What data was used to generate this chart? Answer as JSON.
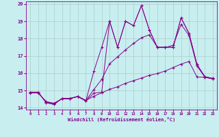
{
  "xlabel": "Windchill (Refroidissement éolien,°C)",
  "bg_color": "#c8eef0",
  "grid_color": "#aacccc",
  "line_color": "#880088",
  "xlim": [
    -0.5,
    23.5
  ],
  "ylim": [
    13.9,
    20.15
  ],
  "xticks": [
    0,
    1,
    2,
    3,
    4,
    5,
    6,
    7,
    8,
    9,
    10,
    11,
    12,
    13,
    14,
    15,
    16,
    17,
    18,
    19,
    20,
    21,
    22,
    23
  ],
  "yticks": [
    14,
    15,
    16,
    17,
    18,
    19,
    20
  ],
  "line1_x": [
    0,
    1,
    2,
    3,
    4,
    5,
    6,
    7,
    8,
    9,
    10,
    11,
    12,
    13,
    14,
    15,
    16,
    17,
    18,
    19,
    20,
    21,
    22,
    23
  ],
  "line1_y": [
    14.9,
    14.9,
    14.3,
    14.2,
    14.55,
    14.55,
    14.65,
    14.4,
    14.85,
    14.9,
    19.0,
    17.5,
    19.0,
    18.75,
    19.9,
    18.5,
    17.5,
    17.5,
    17.5,
    19.2,
    18.3,
    16.5,
    15.8,
    15.7
  ],
  "line2_x": [
    0,
    1,
    2,
    3,
    4,
    5,
    6,
    7,
    8,
    9,
    10,
    11,
    12,
    13,
    14,
    15,
    16,
    17,
    18,
    19,
    20,
    21,
    22,
    23
  ],
  "line2_y": [
    14.9,
    14.9,
    14.3,
    14.2,
    14.55,
    14.55,
    14.65,
    14.4,
    16.1,
    17.5,
    19.0,
    17.5,
    19.0,
    18.75,
    19.9,
    18.5,
    17.5,
    17.5,
    17.5,
    19.2,
    18.3,
    16.5,
    15.8,
    15.7
  ],
  "line3_x": [
    0,
    1,
    2,
    3,
    4,
    5,
    6,
    7,
    8,
    9,
    10,
    11,
    12,
    13,
    14,
    15,
    16,
    17,
    18,
    19,
    20,
    21,
    22,
    23
  ],
  "line3_y": [
    14.88,
    14.88,
    14.35,
    14.25,
    14.52,
    14.52,
    14.67,
    14.43,
    15.05,
    15.65,
    16.55,
    16.95,
    17.35,
    17.72,
    18.05,
    18.22,
    17.5,
    17.48,
    17.62,
    18.82,
    18.18,
    16.42,
    15.77,
    15.67
  ],
  "line4_x": [
    0,
    1,
    2,
    3,
    4,
    5,
    6,
    7,
    8,
    9,
    10,
    11,
    12,
    13,
    14,
    15,
    16,
    17,
    18,
    19,
    20,
    21,
    22,
    23
  ],
  "line4_y": [
    14.86,
    14.86,
    14.36,
    14.27,
    14.53,
    14.53,
    14.67,
    14.43,
    14.67,
    14.87,
    15.07,
    15.22,
    15.42,
    15.57,
    15.72,
    15.88,
    15.98,
    16.13,
    16.33,
    16.53,
    16.68,
    15.78,
    15.77,
    15.67
  ]
}
